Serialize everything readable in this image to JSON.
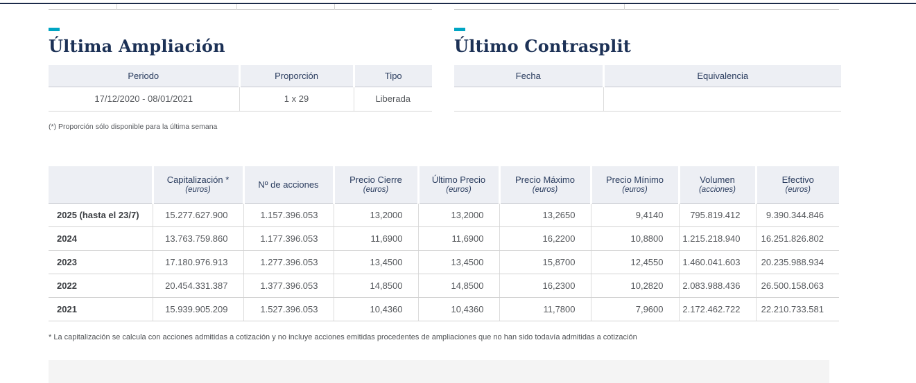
{
  "colors": {
    "accent_teal": "#00a5c3",
    "heading_navy": "#1c3156",
    "table_header_bg": "#edeff4",
    "top_divider_navy": "#1c2b4a",
    "bottom_panel_gray": "#f4f4f4"
  },
  "ampliacion": {
    "title": "Última Ampliación",
    "columns": [
      "Periodo",
      "Proporción",
      "Tipo"
    ],
    "row": [
      "17/12/2020 - 08/01/2021",
      "1 x 29",
      "Liberada"
    ],
    "footnote": "(*) Proporción sólo disponible para la última semana"
  },
  "contrasplit": {
    "title": "Último Contrasplit",
    "columns": [
      "Fecha",
      "Equivalencia"
    ],
    "row": [
      "",
      ""
    ]
  },
  "historical_table": {
    "columns": [
      {
        "label": "",
        "sub": ""
      },
      {
        "label": "Capitalización *",
        "sub": "(euros)"
      },
      {
        "label": "Nº de acciones",
        "sub": ""
      },
      {
        "label": "Precio Cierre",
        "sub": "(euros)"
      },
      {
        "label": "Último Precio",
        "sub": "(euros)"
      },
      {
        "label": "Precio Máximo",
        "sub": "(euros)"
      },
      {
        "label": "Precio Mínimo",
        "sub": "(euros)"
      },
      {
        "label": "Volumen",
        "sub": "(acciones)"
      },
      {
        "label": "Efectivo",
        "sub": "(euros)"
      }
    ],
    "rows": [
      {
        "year": "2025 (hasta el 23/7)",
        "values": [
          "15.277.627.900",
          "1.157.396.053",
          "13,2000",
          "13,2000",
          "13,2650",
          "9,4140",
          "795.819.412",
          "9.390.344.846"
        ]
      },
      {
        "year": "2024",
        "values": [
          "13.763.759.860",
          "1.177.396.053",
          "11,6900",
          "11,6900",
          "16,2200",
          "10,8800",
          "1.215.218.940",
          "16.251.826.802"
        ]
      },
      {
        "year": "2023",
        "values": [
          "17.180.976.913",
          "1.277.396.053",
          "13,4500",
          "13,4500",
          "15,8700",
          "12,4550",
          "1.460.041.603",
          "20.235.988.934"
        ]
      },
      {
        "year": "2022",
        "values": [
          "20.454.331.387",
          "1.377.396.053",
          "14,8500",
          "14,8500",
          "16,2300",
          "10,2820",
          "2.083.988.436",
          "26.500.158.063"
        ]
      },
      {
        "year": "2021",
        "values": [
          "15.939.905.209",
          "1.527.396.053",
          "10,4360",
          "10,4360",
          "11,7800",
          "7,9600",
          "2.172.462.722",
          "22.210.733.581"
        ]
      }
    ],
    "footnote": "* La capitalización se calcula con acciones admitidas a cotización y no incluye acciones emitidas procedentes de ampliaciones que no han sido todavía admitidas a cotización"
  }
}
